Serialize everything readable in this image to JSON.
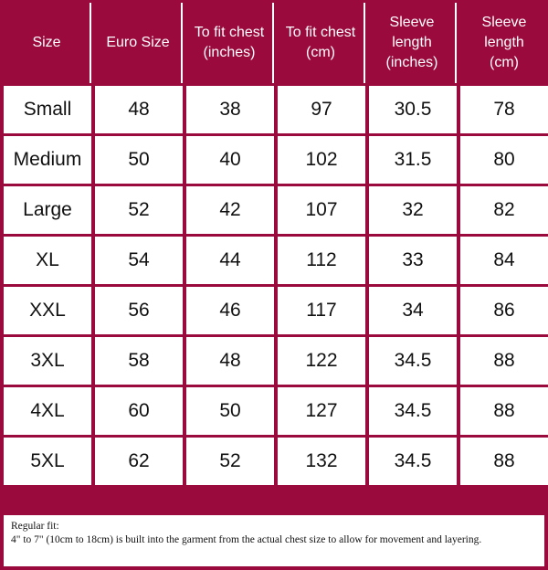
{
  "table": {
    "headers": [
      "Size",
      "Euro Size",
      "To fit chest\n(inches)",
      "To fit chest\n(cm)",
      "Sleeve\nlength\n(inches)",
      "Sleeve\nlength\n(cm)"
    ],
    "rows": [
      [
        "Small",
        "48",
        "38",
        "97",
        "30.5",
        "78"
      ],
      [
        "Medium",
        "50",
        "40",
        "102",
        "31.5",
        "80"
      ],
      [
        "Large",
        "52",
        "42",
        "107",
        "32",
        "82"
      ],
      [
        "XL",
        "54",
        "44",
        "112",
        "33",
        "84"
      ],
      [
        "XXL",
        "56",
        "46",
        "117",
        "34",
        "86"
      ],
      [
        "3XL",
        "58",
        "48",
        "122",
        "34.5",
        "88"
      ],
      [
        "4XL",
        "60",
        "50",
        "127",
        "34.5",
        "88"
      ],
      [
        "5XL",
        "62",
        "52",
        "132",
        "34.5",
        "88"
      ]
    ]
  },
  "footnote": {
    "title": "Regular fit:",
    "body": "4\" to 7\" (10cm to 18cm) is built into the garment from the actual chest size to allow for movement and layering."
  },
  "colors": {
    "header_background": "#9a0a3c",
    "header_text": "#ffffff",
    "cell_background": "#ffffff"
  }
}
